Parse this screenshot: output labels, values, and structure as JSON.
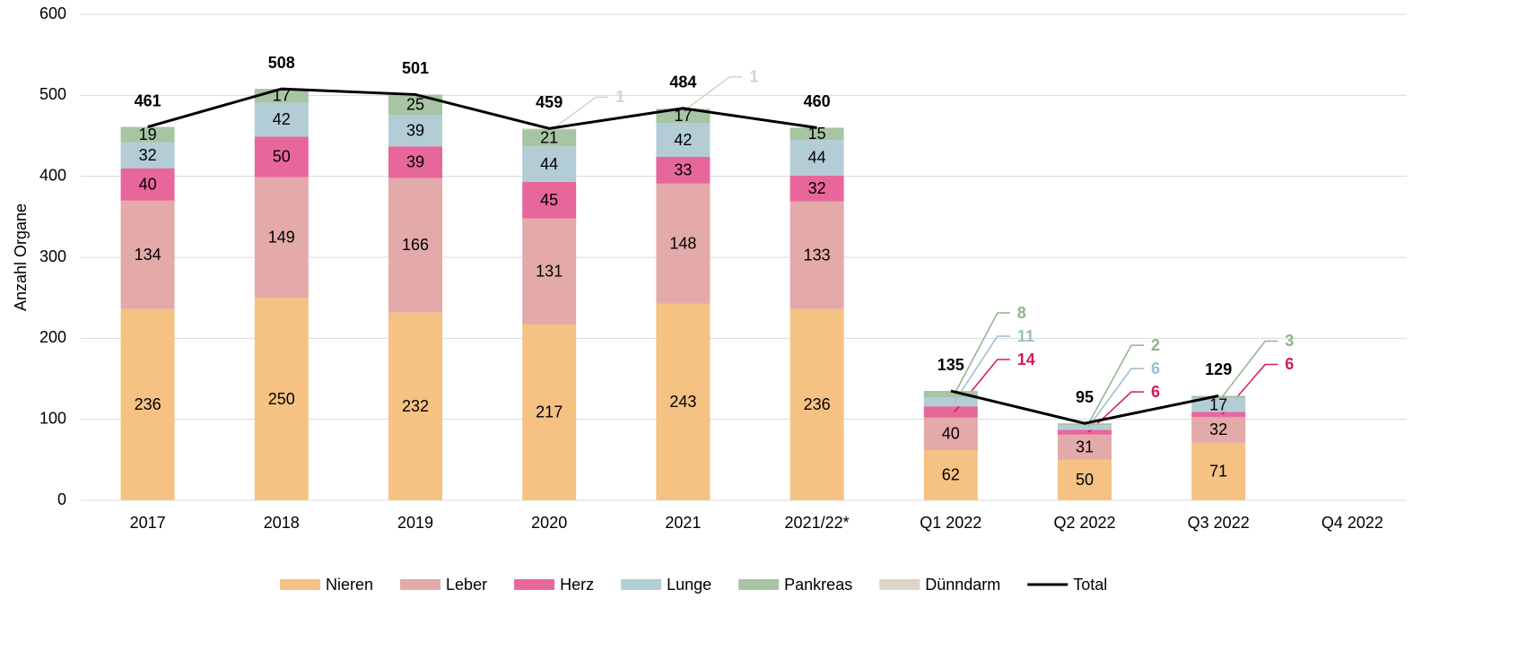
{
  "chart_data": {
    "type": "stacked-bar-line",
    "y_label": "Anzahl Organe",
    "categories": [
      "2017",
      "2018",
      "2019",
      "2020",
      "2021",
      "2021/22*",
      "Q1 2022",
      "Q2 2022",
      "Q3 2022",
      "Q4 2022"
    ],
    "series": [
      {
        "name": "Nieren",
        "color": "#f5c283",
        "label_color": "#000000",
        "values": [
          236,
          250,
          232,
          217,
          243,
          236,
          62,
          50,
          71,
          null
        ]
      },
      {
        "name": "Leber",
        "color": "#e3aaa9",
        "label_color": "#000000",
        "values": [
          134,
          149,
          166,
          131,
          148,
          133,
          40,
          31,
          32,
          null
        ]
      },
      {
        "name": "Herz",
        "color": "#e8679a",
        "label_color": "#d6175e",
        "values": [
          40,
          50,
          39,
          45,
          33,
          32,
          14,
          6,
          6,
          null
        ]
      },
      {
        "name": "Lunge",
        "color": "#b3cdd6",
        "label_color": "#9bbccb",
        "values": [
          32,
          42,
          39,
          44,
          42,
          44,
          11,
          6,
          17,
          null
        ]
      },
      {
        "name": "Pankreas",
        "color": "#a7c4a3",
        "label_color": "#8fb48a",
        "values": [
          19,
          17,
          25,
          21,
          17,
          15,
          8,
          2,
          3,
          null
        ]
      },
      {
        "name": "Dünndarm",
        "color": "#ddd6c8",
        "label_color": "#d8d2c0",
        "values": [
          null,
          null,
          null,
          1,
          1,
          null,
          null,
          null,
          null,
          null
        ]
      }
    ],
    "line": {
      "name": "Total",
      "color": "#000000",
      "values": [
        461,
        508,
        501,
        459,
        484,
        460,
        135,
        95,
        129,
        null
      ],
      "break_after_index": 5
    },
    "ylim": [
      0,
      600
    ],
    "yticks": [
      0,
      100,
      200,
      300,
      400,
      500,
      600
    ],
    "grid": true,
    "legend": "bottom"
  }
}
